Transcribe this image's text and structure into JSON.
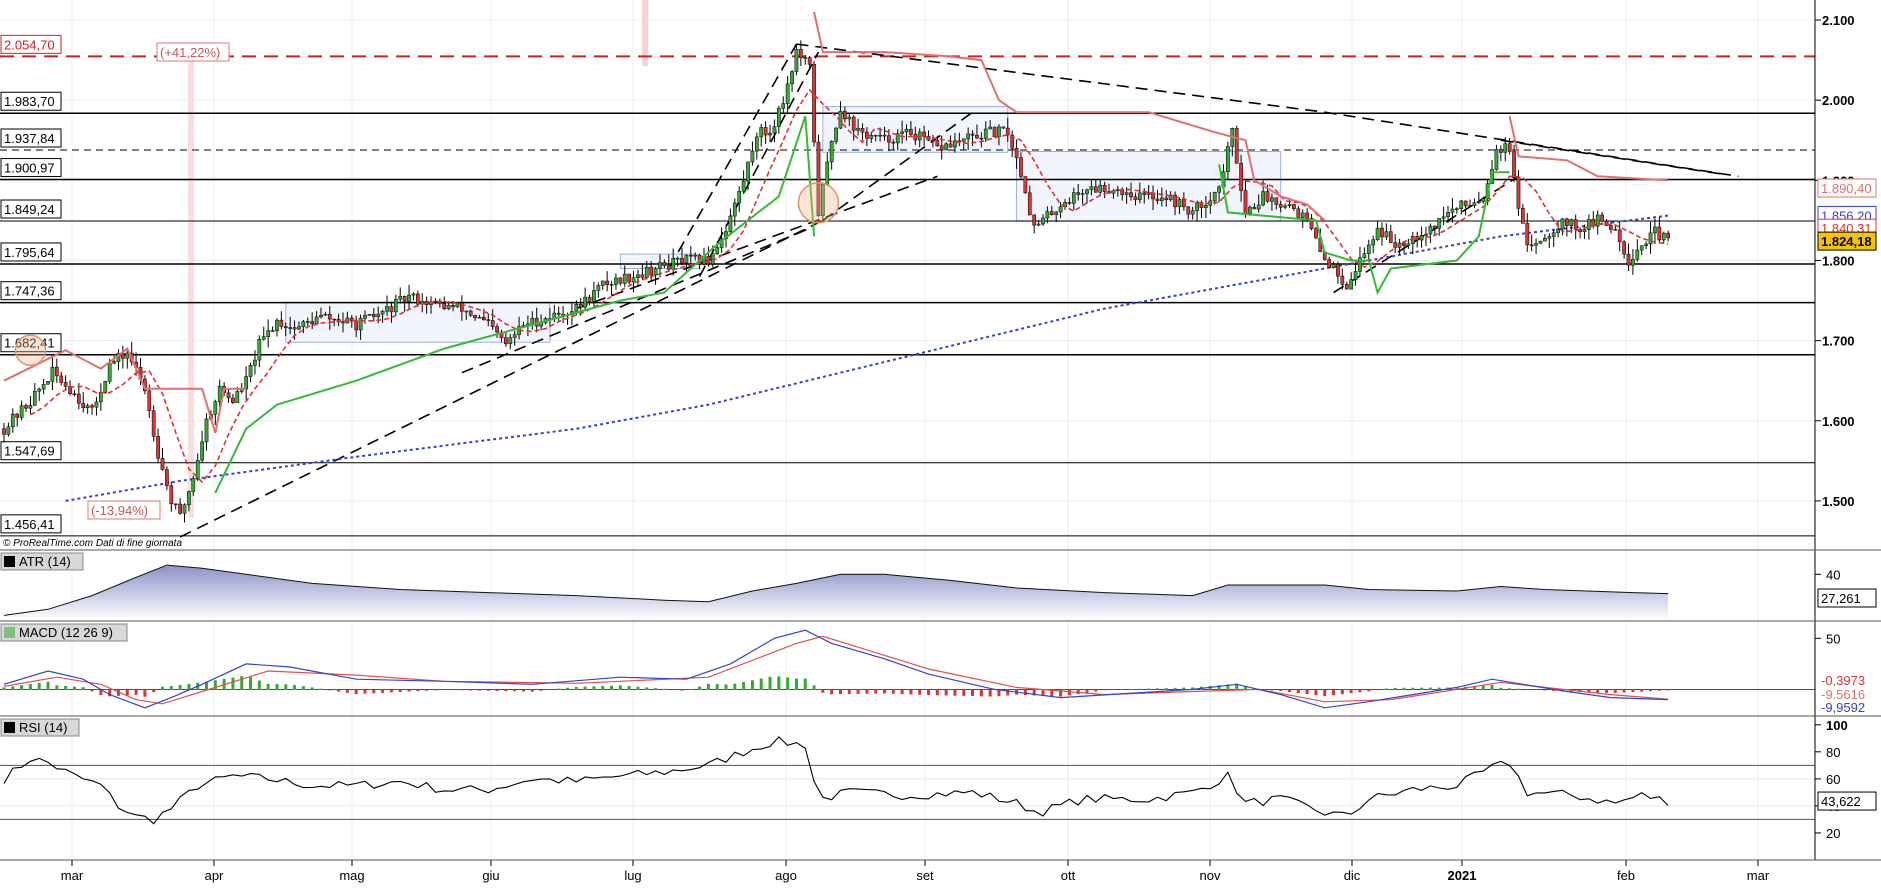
{
  "chart_data": [
    {
      "type": "candlestick",
      "panel": "price",
      "credit": "© ProRealTime.com  Dati di fine giornata",
      "x_ticks": [
        "mar",
        "apr",
        "mag",
        "giu",
        "lug",
        "ago",
        "set",
        "ott",
        "nov",
        "dic",
        "2021",
        "feb",
        "mar"
      ],
      "y_ticks": [
        "2.100",
        "2.000",
        "1.900",
        "1.800",
        "1.700",
        "1.600",
        "1.500"
      ],
      "y_tick_values": [
        2100,
        2000,
        1900,
        1800,
        1700,
        1600,
        1500
      ],
      "ylim": [
        1445,
        2125
      ],
      "grid": true,
      "horizontal_levels": [
        {
          "label": "2.054,70",
          "value": 2054.7,
          "style": "red-dashed"
        },
        {
          "label": "1.983,70",
          "value": 1983.7,
          "style": "solid"
        },
        {
          "label": "1.937,84",
          "value": 1937.84,
          "style": "dashed"
        },
        {
          "label": "1.900,97",
          "value": 1900.97,
          "style": "solid"
        },
        {
          "label": "1.849,24",
          "value": 1849.24,
          "style": "thin"
        },
        {
          "label": "1.795,64",
          "value": 1795.64,
          "style": "solid"
        },
        {
          "label": "1.747,36",
          "value": 1747.36,
          "style": "solid"
        },
        {
          "label": "1.682,41",
          "value": 1682.41,
          "style": "solid"
        },
        {
          "label": "1.547,69",
          "value": 1547.69,
          "style": "thin"
        },
        {
          "label": "1.456,41",
          "value": 1456.41,
          "style": "thin"
        }
      ],
      "annotations": [
        "(+41,22%)",
        "(-13,94%)"
      ],
      "last_values": [
        {
          "label": "1.890,40",
          "value": 1890.4,
          "color": "#e07070"
        },
        {
          "label": "1.856,20",
          "value": 1856.2,
          "color": "#3344cc"
        },
        {
          "label": "1.840,31",
          "value": 1840.31,
          "color": "#e03030"
        },
        {
          "label": "1.824,18",
          "value": 1824.18,
          "color": "#f5c400"
        }
      ],
      "close_series_key_points": [
        [
          0,
          1590
        ],
        [
          6,
          1625
        ],
        [
          11,
          1660
        ],
        [
          15,
          1640
        ],
        [
          20,
          1610
        ],
        [
          24,
          1670
        ],
        [
          28,
          1685
        ],
        [
          32,
          1640
        ],
        [
          35,
          1560
        ],
        [
          38,
          1500
        ],
        [
          40,
          1480
        ],
        [
          43,
          1530
        ],
        [
          46,
          1600
        ],
        [
          49,
          1640
        ],
        [
          52,
          1625
        ],
        [
          55,
          1650
        ],
        [
          58,
          1695
        ],
        [
          62,
          1725
        ],
        [
          66,
          1715
        ],
        [
          72,
          1730
        ],
        [
          80,
          1720
        ],
        [
          86,
          1735
        ],
        [
          92,
          1755
        ],
        [
          98,
          1745
        ],
        [
          104,
          1740
        ],
        [
          110,
          1720
        ],
        [
          114,
          1695
        ],
        [
          118,
          1720
        ],
        [
          124,
          1730
        ],
        [
          130,
          1740
        ],
        [
          136,
          1770
        ],
        [
          142,
          1780
        ],
        [
          148,
          1790
        ],
        [
          154,
          1800
        ],
        [
          160,
          1800
        ],
        [
          164,
          1840
        ],
        [
          168,
          1900
        ],
        [
          171,
          1960
        ],
        [
          174,
          1960
        ],
        [
          177,
          2000
        ],
        [
          180,
          2060
        ],
        [
          183,
          2040
        ],
        [
          185,
          1860
        ],
        [
          188,
          1950
        ],
        [
          190,
          1990
        ],
        [
          194,
          1960
        ],
        [
          200,
          1950
        ],
        [
          206,
          1960
        ],
        [
          212,
          1940
        ],
        [
          218,
          1950
        ],
        [
          224,
          1960
        ],
        [
          228,
          1960
        ],
        [
          231,
          1910
        ],
        [
          234,
          1840
        ],
        [
          240,
          1870
        ],
        [
          246,
          1890
        ],
        [
          252,
          1890
        ],
        [
          258,
          1880
        ],
        [
          264,
          1880
        ],
        [
          270,
          1860
        ],
        [
          276,
          1890
        ],
        [
          279,
          1960
        ],
        [
          282,
          1860
        ],
        [
          286,
          1880
        ],
        [
          292,
          1870
        ],
        [
          296,
          1850
        ],
        [
          299,
          1810
        ],
        [
          302,
          1790
        ],
        [
          305,
          1770
        ],
        [
          308,
          1800
        ],
        [
          312,
          1840
        ],
        [
          316,
          1820
        ],
        [
          320,
          1830
        ],
        [
          324,
          1840
        ],
        [
          328,
          1860
        ],
        [
          332,
          1870
        ],
        [
          336,
          1880
        ],
        [
          339,
          1940
        ],
        [
          342,
          1940
        ],
        [
          344,
          1860
        ],
        [
          346,
          1820
        ],
        [
          350,
          1830
        ],
        [
          354,
          1850
        ],
        [
          358,
          1840
        ],
        [
          362,
          1850
        ],
        [
          366,
          1840
        ],
        [
          369,
          1800
        ],
        [
          372,
          1820
        ],
        [
          375,
          1835
        ],
        [
          378,
          1824
        ]
      ],
      "x_domain": [
        0,
        410
      ]
    },
    {
      "type": "area",
      "panel": "ATR",
      "title": "ATR (14)",
      "y_ticks": [
        "40"
      ],
      "y_tick_values": [
        40
      ],
      "ylim": [
        10,
        52
      ],
      "last_label": "27,261",
      "values_key_points": [
        [
          0,
          13
        ],
        [
          10,
          17
        ],
        [
          20,
          26
        ],
        [
          30,
          38
        ],
        [
          37,
          46
        ],
        [
          45,
          44
        ],
        [
          55,
          40
        ],
        [
          70,
          34
        ],
        [
          90,
          30
        ],
        [
          110,
          28
        ],
        [
          130,
          26
        ],
        [
          150,
          23
        ],
        [
          160,
          22
        ],
        [
          170,
          29
        ],
        [
          180,
          34
        ],
        [
          190,
          40
        ],
        [
          200,
          40
        ],
        [
          215,
          36
        ],
        [
          230,
          31
        ],
        [
          250,
          28
        ],
        [
          270,
          26
        ],
        [
          278,
          33
        ],
        [
          290,
          33
        ],
        [
          300,
          33
        ],
        [
          310,
          30
        ],
        [
          330,
          29
        ],
        [
          340,
          32
        ],
        [
          350,
          30
        ],
        [
          370,
          28
        ],
        [
          378,
          27.3
        ]
      ]
    },
    {
      "type": "line",
      "panel": "MACD",
      "title": "MACD (12 26 9)",
      "y_ticks": [
        "50"
      ],
      "y_tick_values": [
        50
      ],
      "ylim": [
        -25,
        65
      ],
      "last_labels": [
        "-0,3973",
        "-9,5616",
        "-9,9592"
      ],
      "macd_key_points": [
        [
          0,
          5
        ],
        [
          10,
          18
        ],
        [
          18,
          10
        ],
        [
          24,
          -5
        ],
        [
          32,
          -18
        ],
        [
          38,
          -8
        ],
        [
          45,
          5
        ],
        [
          55,
          25
        ],
        [
          65,
          22
        ],
        [
          80,
          10
        ],
        [
          100,
          8
        ],
        [
          120,
          5
        ],
        [
          140,
          12
        ],
        [
          155,
          10
        ],
        [
          165,
          25
        ],
        [
          175,
          50
        ],
        [
          182,
          58
        ],
        [
          188,
          45
        ],
        [
          200,
          30
        ],
        [
          210,
          15
        ],
        [
          225,
          0
        ],
        [
          240,
          -8
        ],
        [
          255,
          -4
        ],
        [
          270,
          0
        ],
        [
          280,
          5
        ],
        [
          290,
          -5
        ],
        [
          300,
          -18
        ],
        [
          310,
          -12
        ],
        [
          320,
          -5
        ],
        [
          330,
          2
        ],
        [
          338,
          10
        ],
        [
          345,
          5
        ],
        [
          355,
          -2
        ],
        [
          365,
          -8
        ],
        [
          378,
          -9.9
        ]
      ],
      "signal_key_points": [
        [
          0,
          3
        ],
        [
          12,
          12
        ],
        [
          22,
          5
        ],
        [
          30,
          -10
        ],
        [
          36,
          -14
        ],
        [
          45,
          -2
        ],
        [
          60,
          18
        ],
        [
          80,
          14
        ],
        [
          100,
          8
        ],
        [
          130,
          6
        ],
        [
          160,
          12
        ],
        [
          180,
          45
        ],
        [
          186,
          52
        ],
        [
          195,
          40
        ],
        [
          210,
          20
        ],
        [
          230,
          2
        ],
        [
          250,
          -5
        ],
        [
          270,
          -2
        ],
        [
          285,
          0
        ],
        [
          300,
          -12
        ],
        [
          315,
          -10
        ],
        [
          330,
          0
        ],
        [
          340,
          7
        ],
        [
          350,
          2
        ],
        [
          365,
          -5
        ],
        [
          378,
          -9.5
        ]
      ]
    },
    {
      "type": "line",
      "panel": "RSI",
      "title": "RSI (14)",
      "y_ticks": [
        "100",
        "80",
        "60",
        "40",
        "20"
      ],
      "y_tick_values": [
        100,
        80,
        60,
        40,
        20
      ],
      "ylim": [
        0,
        105
      ],
      "overbought": 70,
      "oversold": 30,
      "last_label": "43,622",
      "values_key_points": [
        [
          0,
          60
        ],
        [
          6,
          75
        ],
        [
          10,
          72
        ],
        [
          16,
          62
        ],
        [
          22,
          55
        ],
        [
          26,
          40
        ],
        [
          30,
          32
        ],
        [
          34,
          30
        ],
        [
          38,
          38
        ],
        [
          44,
          55
        ],
        [
          52,
          62
        ],
        [
          60,
          60
        ],
        [
          70,
          55
        ],
        [
          80,
          55
        ],
        [
          90,
          58
        ],
        [
          100,
          52
        ],
        [
          110,
          52
        ],
        [
          120,
          60
        ],
        [
          130,
          58
        ],
        [
          140,
          62
        ],
        [
          150,
          65
        ],
        [
          160,
          70
        ],
        [
          168,
          80
        ],
        [
          175,
          88
        ],
        [
          182,
          85
        ],
        [
          185,
          45
        ],
        [
          192,
          50
        ],
        [
          205,
          48
        ],
        [
          220,
          50
        ],
        [
          230,
          42
        ],
        [
          235,
          35
        ],
        [
          245,
          45
        ],
        [
          260,
          45
        ],
        [
          270,
          50
        ],
        [
          278,
          62
        ],
        [
          282,
          42
        ],
        [
          290,
          45
        ],
        [
          300,
          35
        ],
        [
          305,
          32
        ],
        [
          310,
          45
        ],
        [
          320,
          52
        ],
        [
          330,
          55
        ],
        [
          338,
          68
        ],
        [
          342,
          72
        ],
        [
          346,
          50
        ],
        [
          356,
          48
        ],
        [
          366,
          42
        ],
        [
          372,
          48
        ],
        [
          378,
          43.6
        ]
      ]
    }
  ],
  "colors": {
    "up_candle": "#33aa33",
    "down_candle": "#dd3333",
    "resistance_dashed": "#cc2222",
    "ma_short": "#e03030",
    "ma_long": "#3344cc",
    "supertrend_up": "#33bb33",
    "supertrend_down": "#e07070",
    "atr_fill": "#9aa0cc",
    "rsi_line": "#000000",
    "rsi_bounds": "#4444aa",
    "macd_line": "#3344cc",
    "signal_line": "#e05050",
    "hist_pos": "#33aa33",
    "hist_neg": "#dd3333",
    "highlight": "#f2f4fe"
  }
}
